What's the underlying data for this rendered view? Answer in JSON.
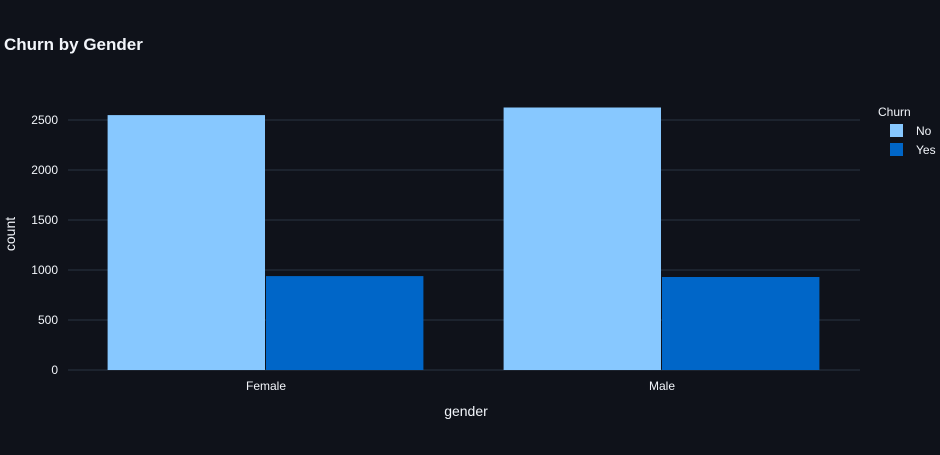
{
  "colors": {
    "background": "#0f121a",
    "grid": "#283442",
    "text": "#f2f5fa",
    "series_no": "#87c8ff",
    "series_yes": "#0066c8"
  },
  "chart_data": {
    "type": "bar",
    "title": "Churn by Gender",
    "xlabel": "gender",
    "ylabel": "count",
    "categories": [
      "Female",
      "Male"
    ],
    "series": [
      {
        "name": "No",
        "values": [
          2549,
          2625
        ],
        "color": "#87c8ff"
      },
      {
        "name": "Yes",
        "values": [
          939,
          930
        ],
        "color": "#0066c8"
      }
    ],
    "ylim": [
      0,
      2800
    ],
    "yticks": [
      0,
      500,
      1000,
      1500,
      2000,
      2500
    ],
    "grid": true,
    "legend": {
      "title": "Churn",
      "position": "top-right"
    },
    "barmode": "group"
  }
}
